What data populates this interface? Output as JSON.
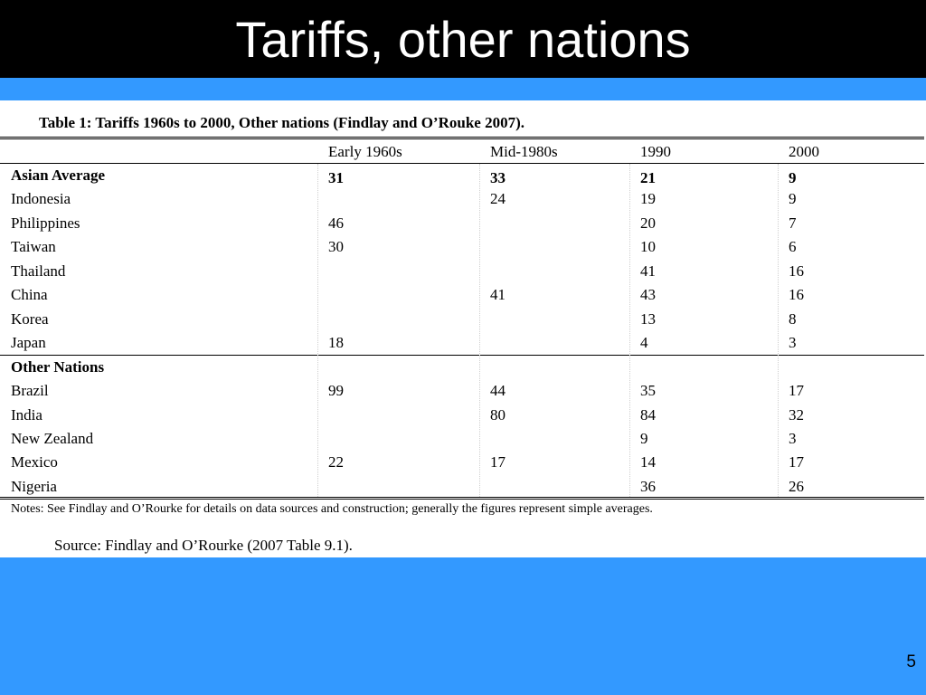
{
  "slide": {
    "title": "Tariffs, other nations",
    "page_number": "5"
  },
  "table": {
    "caption": "Table 1: Tariffs  1960s to 2000, Other nations (Findlay and O’Rouke 2007).",
    "columns": [
      "",
      "Early 1960s",
      "Mid-1980s",
      "1990",
      "2000"
    ],
    "sections": [
      {
        "heading": "Asian Average",
        "heading_values": [
          "31",
          "33",
          "21",
          "9"
        ],
        "rows": [
          {
            "label": "Indonesia",
            "values": [
              "",
              "24",
              "19",
              "9"
            ]
          },
          {
            "label": "Philippines",
            "values": [
              "46",
              "",
              "20",
              "7"
            ]
          },
          {
            "label": "Taiwan",
            "values": [
              "30",
              "",
              "10",
              "6"
            ]
          },
          {
            "label": "Thailand",
            "values": [
              "",
              "",
              "41",
              "16"
            ]
          },
          {
            "label": "China",
            "values": [
              "",
              "41",
              "43",
              "16"
            ]
          },
          {
            "label": "Korea",
            "values": [
              "",
              "",
              "13",
              "8"
            ]
          },
          {
            "label": "Japan",
            "values": [
              "18",
              "",
              "4",
              "3"
            ]
          }
        ]
      },
      {
        "heading": "Other Nations",
        "heading_values": [
          "",
          "",
          "",
          ""
        ],
        "rows": [
          {
            "label": "Brazil",
            "values": [
              "99",
              "44",
              "35",
              "17"
            ]
          },
          {
            "label": "India",
            "values": [
              "",
              "80",
              "84",
              "32"
            ]
          },
          {
            "label": "New Zealand",
            "values": [
              "",
              "",
              "9",
              "3"
            ]
          },
          {
            "label": "Mexico",
            "values": [
              "22",
              "17",
              "14",
              "17"
            ]
          },
          {
            "label": "Nigeria",
            "values": [
              "",
              "",
              "36",
              "26"
            ]
          }
        ]
      }
    ],
    "notes": "Notes: See Findlay and O’Rourke for details on data sources and construction; generally the figures represent simple averages.",
    "source": "Source: Findlay and O’Rourke (2007 Table 9.1)."
  },
  "colors": {
    "background": "#3399ff",
    "title_bar": "#000000",
    "title_text": "#ffffff",
    "content_panel": "#ffffff"
  }
}
